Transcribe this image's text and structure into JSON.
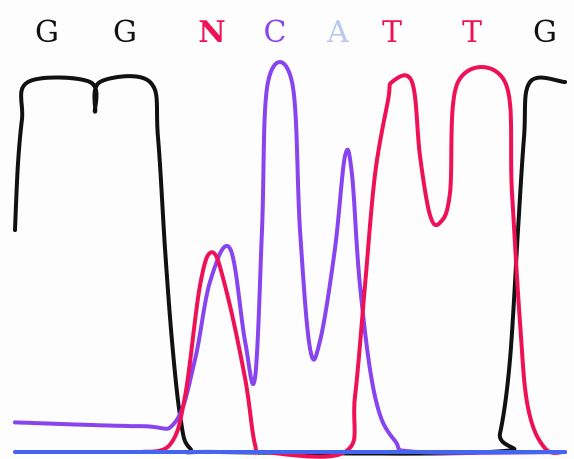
{
  "chart_data": {
    "type": "line",
    "title": "",
    "xlabel": "",
    "ylabel": "",
    "base_calls": [
      {
        "base": "G",
        "color": "#111111"
      },
      {
        "base": "G",
        "color": "#111111"
      },
      {
        "base": "N",
        "color": "#ee1155"
      },
      {
        "base": "C",
        "color": "#8844ee"
      },
      {
        "base": "A",
        "color": "#b8c8ee"
      },
      {
        "base": "T",
        "color": "#ee1155"
      },
      {
        "base": "T",
        "color": "#ee1155"
      },
      {
        "base": "G",
        "color": "#111111"
      }
    ],
    "ylim": [
      0,
      100
    ],
    "xlim": [
      0,
      574
    ],
    "series": [
      {
        "color": "#111111",
        "points": [
          [
            15,
            60
          ],
          [
            18,
            78
          ],
          [
            22,
            90
          ],
          [
            28,
            100
          ],
          [
            90,
            100
          ],
          [
            95,
            92
          ],
          [
            100,
            100
          ],
          [
            150,
            100
          ],
          [
            158,
            85
          ],
          [
            165,
            55
          ],
          [
            172,
            30
          ],
          [
            180,
            10
          ],
          [
            190,
            1
          ],
          [
            220,
            0
          ],
          [
            490,
            0
          ],
          [
            500,
            5
          ],
          [
            510,
            25
          ],
          [
            518,
            60
          ],
          [
            524,
            85
          ],
          [
            530,
            100
          ],
          [
            565,
            100
          ]
        ]
      },
      {
        "color": "#8844ee",
        "points": [
          [
            15,
            8
          ],
          [
            140,
            7
          ],
          [
            175,
            8
          ],
          [
            195,
            25
          ],
          [
            210,
            46
          ],
          [
            230,
            55
          ],
          [
            245,
            30
          ],
          [
            255,
            20
          ],
          [
            262,
            60
          ],
          [
            268,
            100
          ],
          [
            292,
            100
          ],
          [
            300,
            60
          ],
          [
            310,
            28
          ],
          [
            320,
            30
          ],
          [
            335,
            55
          ],
          [
            345,
            80
          ],
          [
            352,
            75
          ],
          [
            360,
            45
          ],
          [
            375,
            15
          ],
          [
            395,
            3
          ],
          [
            420,
            0
          ],
          [
            565,
            0
          ]
        ]
      },
      {
        "color": "#ee1155",
        "points": [
          [
            140,
            0
          ],
          [
            170,
            2
          ],
          [
            185,
            15
          ],
          [
            200,
            45
          ],
          [
            212,
            54
          ],
          [
            225,
            45
          ],
          [
            245,
            20
          ],
          [
            255,
            2
          ],
          [
            265,
            0
          ],
          [
            345,
            0
          ],
          [
            355,
            15
          ],
          [
            365,
            45
          ],
          [
            375,
            75
          ],
          [
            388,
            95
          ],
          [
            392,
            100
          ],
          [
            412,
            100
          ],
          [
            420,
            80
          ],
          [
            430,
            64
          ],
          [
            440,
            62
          ],
          [
            450,
            70
          ],
          [
            458,
            100
          ],
          [
            505,
            100
          ],
          [
            512,
            70
          ],
          [
            520,
            35
          ],
          [
            528,
            12
          ],
          [
            545,
            1
          ],
          [
            565,
            0
          ]
        ]
      },
      {
        "color": "#4466ee",
        "points": [
          [
            15,
            0
          ],
          [
            565,
            0
          ]
        ]
      }
    ]
  }
}
